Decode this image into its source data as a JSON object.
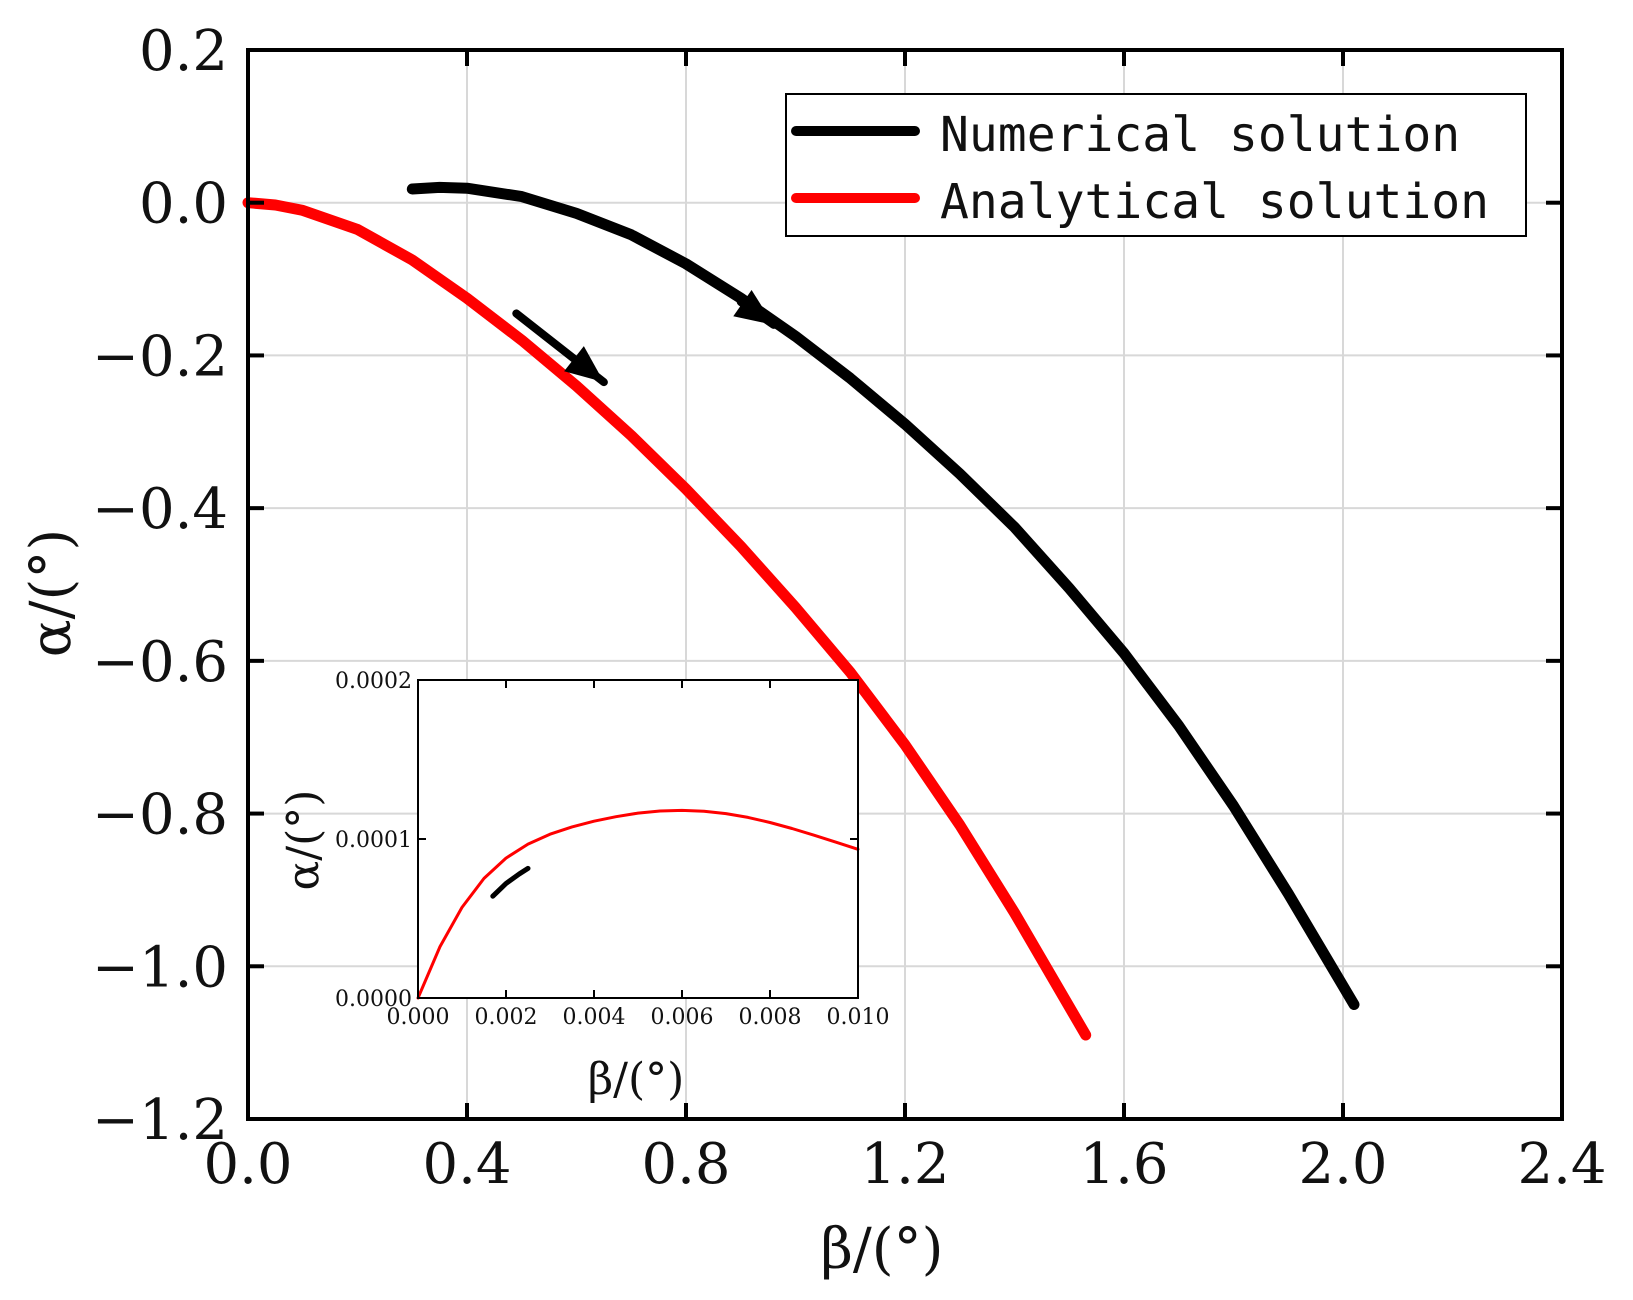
{
  "chart_data": [
    {
      "id": "main",
      "type": "line",
      "title": "",
      "xlabel": "β/(°)",
      "ylabel": "α/(°)",
      "xlim": [
        0.0,
        2.4
      ],
      "ylim": [
        -1.2,
        0.2
      ],
      "xticks": [
        0.0,
        0.4,
        0.8,
        1.2,
        1.6,
        2.0,
        2.4
      ],
      "xtick_labels": [
        "0.0",
        "0.4",
        "0.8",
        "1.2",
        "1.6",
        "2.0",
        "2.4"
      ],
      "yticks": [
        0.2,
        0.0,
        -0.2,
        -0.4,
        -0.6,
        -0.8,
        -1.0,
        -1.2
      ],
      "ytick_labels": [
        "0.2",
        "0.0",
        "−0.2",
        "−0.4",
        "−0.6",
        "−0.8",
        "−1.0",
        "−1.2"
      ],
      "grid": true,
      "legend_position": "top-right",
      "series": [
        {
          "name": "Numerical solution",
          "color": "#000000",
          "x": [
            0.3,
            0.35,
            0.4,
            0.5,
            0.6,
            0.7,
            0.8,
            0.9,
            1.0,
            1.1,
            1.2,
            1.3,
            1.4,
            1.5,
            1.6,
            1.7,
            1.8,
            1.9,
            2.02
          ],
          "y": [
            0.018,
            0.02,
            0.019,
            0.008,
            -0.014,
            -0.042,
            -0.08,
            -0.125,
            -0.175,
            -0.23,
            -0.29,
            -0.355,
            -0.425,
            -0.505,
            -0.59,
            -0.685,
            -0.79,
            -0.905,
            -1.05
          ]
        },
        {
          "name": "Analytical solution",
          "color": "#ff0000",
          "x": [
            0.0,
            0.05,
            0.1,
            0.2,
            0.3,
            0.4,
            0.5,
            0.6,
            0.7,
            0.8,
            0.9,
            1.0,
            1.1,
            1.2,
            1.3,
            1.4,
            1.53
          ],
          "y": [
            0.0,
            -0.003,
            -0.01,
            -0.035,
            -0.075,
            -0.125,
            -0.18,
            -0.24,
            -0.305,
            -0.375,
            -0.45,
            -0.53,
            -0.615,
            -0.71,
            -0.815,
            -0.93,
            -1.09
          ]
        }
      ],
      "arrows": [
        {
          "series": "Analytical solution",
          "from": [
            0.49,
            -0.145
          ],
          "to": [
            0.65,
            -0.235
          ]
        },
        {
          "series": "Numerical solution",
          "from": [
            0.9,
            -0.13
          ],
          "to": [
            0.96,
            -0.16
          ]
        }
      ]
    },
    {
      "id": "inset",
      "type": "line",
      "xlabel": "β/(°)",
      "ylabel": "α/(°)",
      "xlim": [
        0.0,
        0.01
      ],
      "ylim": [
        0.0,
        0.0002
      ],
      "xticks": [
        0.0,
        0.002,
        0.004,
        0.006,
        0.008,
        0.01
      ],
      "xtick_labels": [
        "0.000",
        "0.002",
        "0.004",
        "0.006",
        "0.008",
        "0.010"
      ],
      "yticks": [
        0.0,
        0.0001,
        0.0002
      ],
      "ytick_labels": [
        "0.0000",
        "0.0001",
        "0.0002"
      ],
      "grid": false,
      "series": [
        {
          "name": "Analytical solution",
          "color": "#ff0000",
          "x": [
            0.0,
            0.0005,
            0.001,
            0.0015,
            0.002,
            0.0025,
            0.003,
            0.0035,
            0.004,
            0.0045,
            0.005,
            0.0055,
            0.006,
            0.0065,
            0.007,
            0.0075,
            0.008,
            0.0085,
            0.009,
            0.0095,
            0.01
          ],
          "y": [
            0.0,
            3.23e-05,
            5.7e-05,
            7.52e-05,
            8.8e-05,
            9.68e-05,
            0.000103,
            0.0001076,
            0.0001112,
            0.000114,
            0.0001163,
            0.0001176,
            0.000118,
            0.0001175,
            0.000116,
            0.0001136,
            0.0001104,
            0.0001066,
            0.0001024,
            9.8e-05,
            9.35e-05
          ]
        },
        {
          "name": "Numerical solution",
          "color": "#000000",
          "x": [
            0.0017,
            0.002,
            0.0023,
            0.0025
          ],
          "y": [
            6.4e-05,
            7.2e-05,
            7.8e-05,
            8.15e-05
          ]
        }
      ]
    }
  ]
}
